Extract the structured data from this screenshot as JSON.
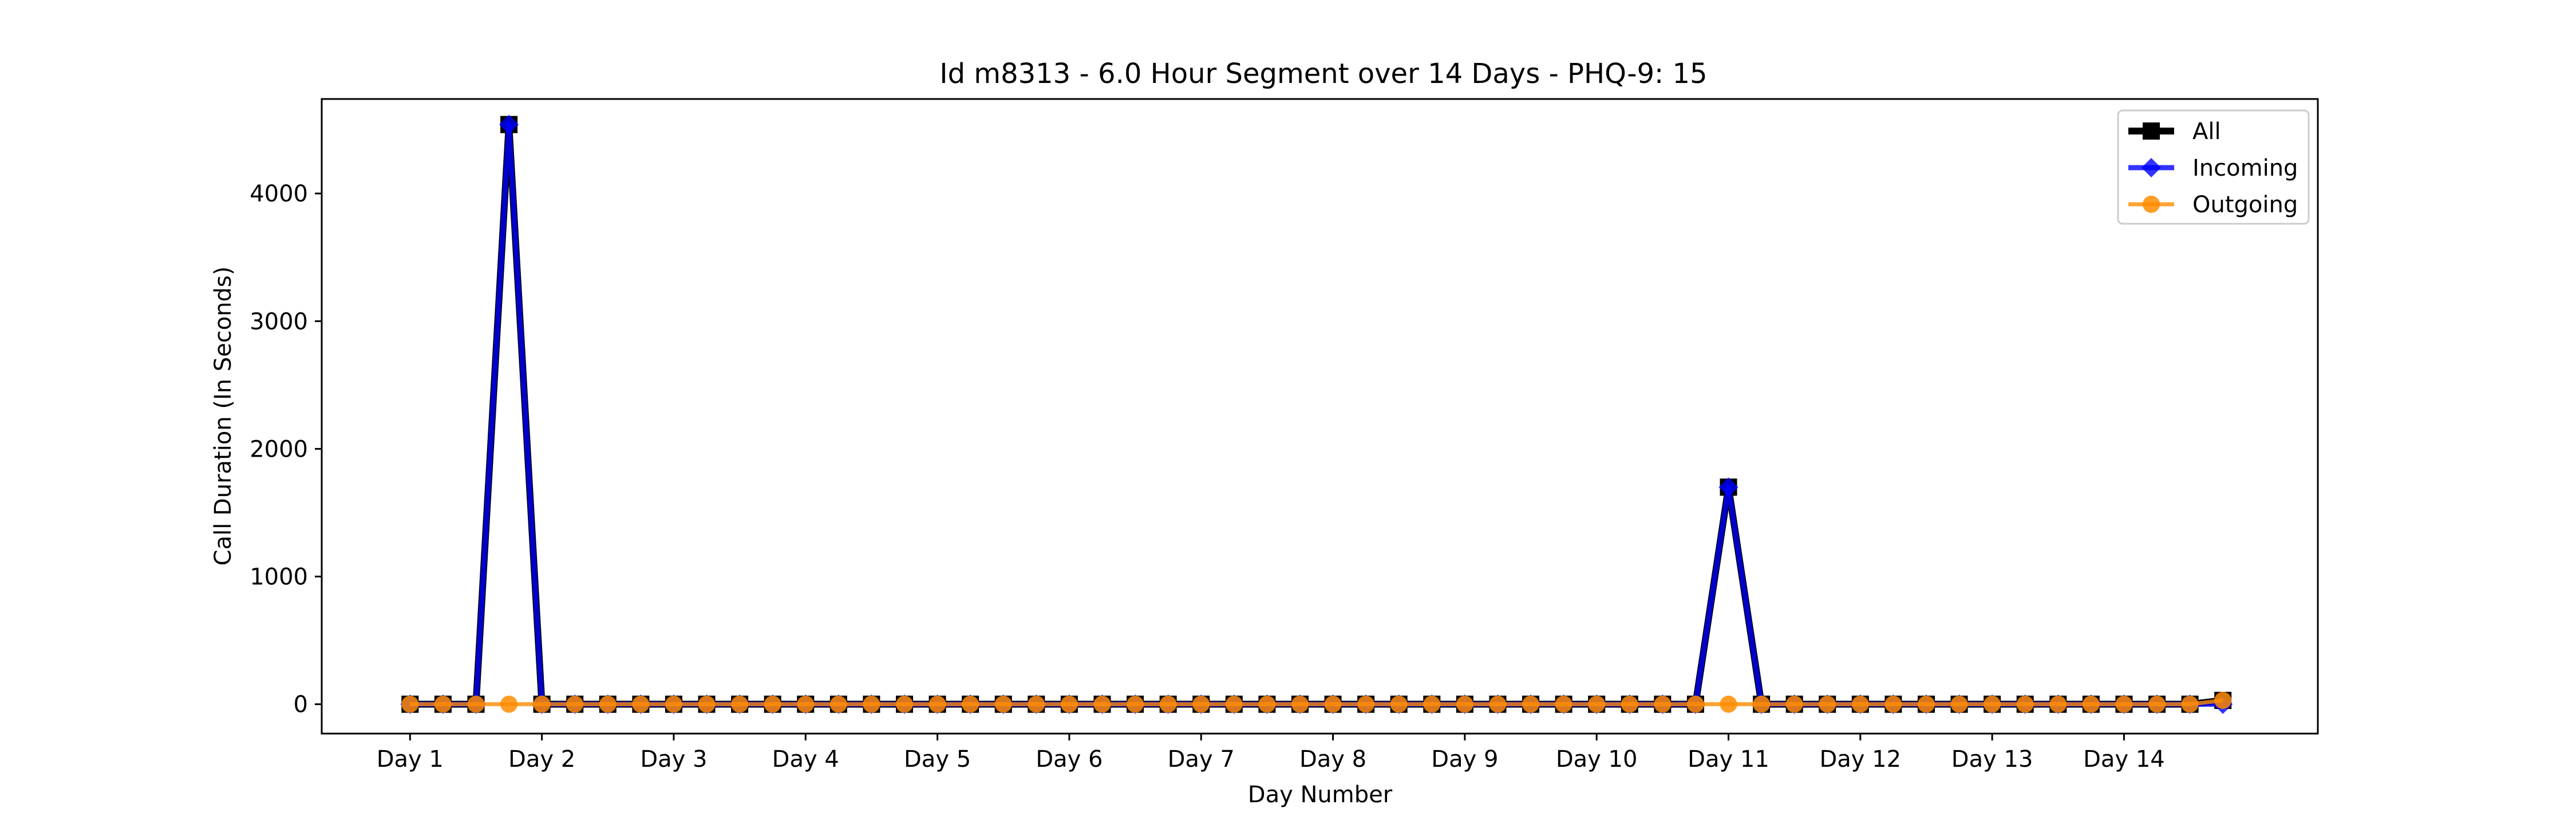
{
  "chart_data": {
    "type": "line",
    "title": "Id m8313 - 6.0 Hour Segment over 14 Days - PHQ-9: 15",
    "xlabel": "Day Number",
    "ylabel": "Call Duration (In Seconds)",
    "ylim": [
      -230,
      4740
    ],
    "xlim": [
      0.33,
      15.47
    ],
    "yticks": [
      0,
      1000,
      2000,
      3000,
      4000
    ],
    "xticks": [
      1,
      2,
      3,
      4,
      5,
      6,
      7,
      8,
      9,
      10,
      11,
      12,
      13,
      14
    ],
    "xtick_labels": [
      "Day 1",
      "Day 2",
      "Day 3",
      "Day 4",
      "Day 5",
      "Day 6",
      "Day 7",
      "Day 8",
      "Day 9",
      "Day 10",
      "Day 11",
      "Day 12",
      "Day 13",
      "Day 14"
    ],
    "grid": false,
    "legend_position": "top-right",
    "x": [
      1.0,
      1.25,
      1.5,
      1.75,
      2.0,
      2.25,
      2.5,
      2.75,
      3.0,
      3.25,
      3.5,
      3.75,
      4.0,
      4.25,
      4.5,
      4.75,
      5.0,
      5.25,
      5.5,
      5.75,
      6.0,
      6.25,
      6.5,
      6.75,
      7.0,
      7.25,
      7.5,
      7.75,
      8.0,
      8.25,
      8.5,
      8.75,
      9.0,
      9.25,
      9.5,
      9.75,
      10.0,
      10.25,
      10.5,
      10.75,
      11.0,
      11.25,
      11.5,
      11.75,
      12.0,
      12.25,
      12.5,
      12.75,
      13.0,
      13.25,
      13.5,
      13.75,
      14.0,
      14.25,
      14.5,
      14.75
    ],
    "series": [
      {
        "name": "All",
        "color": "#000000",
        "marker": "square",
        "values": [
          0,
          0,
          0,
          4540,
          0,
          0,
          0,
          0,
          0,
          0,
          0,
          0,
          0,
          0,
          0,
          0,
          0,
          0,
          0,
          0,
          0,
          0,
          0,
          0,
          0,
          0,
          0,
          0,
          0,
          0,
          0,
          0,
          0,
          0,
          0,
          0,
          0,
          0,
          0,
          0,
          1700,
          0,
          0,
          0,
          0,
          0,
          0,
          0,
          0,
          0,
          0,
          0,
          0,
          0,
          0,
          30
        ]
      },
      {
        "name": "Incoming",
        "color": "#0000ff",
        "marker": "diamond",
        "values": [
          0,
          0,
          0,
          4540,
          0,
          0,
          0,
          0,
          0,
          0,
          0,
          0,
          0,
          0,
          0,
          0,
          0,
          0,
          0,
          0,
          0,
          0,
          0,
          0,
          0,
          0,
          0,
          0,
          0,
          0,
          0,
          0,
          0,
          0,
          0,
          0,
          0,
          0,
          0,
          0,
          1700,
          0,
          0,
          0,
          0,
          0,
          0,
          0,
          0,
          0,
          0,
          0,
          0,
          0,
          0,
          0
        ]
      },
      {
        "name": "Outgoing",
        "color": "#ff8c00",
        "marker": "circle",
        "values": [
          0,
          0,
          0,
          0,
          0,
          0,
          0,
          0,
          0,
          0,
          0,
          0,
          0,
          0,
          0,
          0,
          0,
          0,
          0,
          0,
          0,
          0,
          0,
          0,
          0,
          0,
          0,
          0,
          0,
          0,
          0,
          0,
          0,
          0,
          0,
          0,
          0,
          0,
          0,
          0,
          0,
          0,
          0,
          0,
          0,
          0,
          0,
          0,
          0,
          0,
          0,
          0,
          0,
          0,
          0,
          30
        ]
      }
    ]
  }
}
